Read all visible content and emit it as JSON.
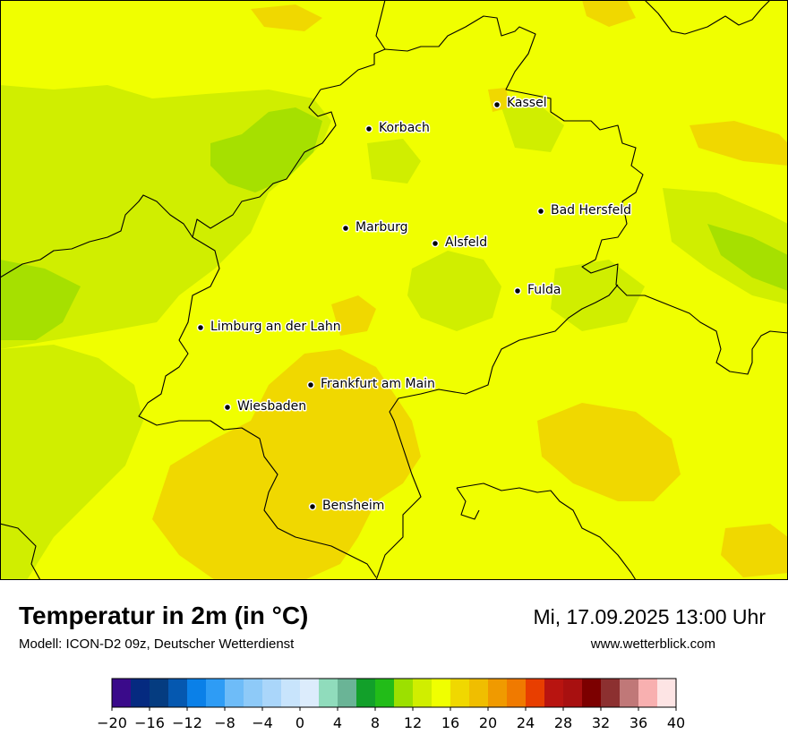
{
  "map": {
    "cities": [
      {
        "name": "Kassel"
      },
      {
        "name": "Korbach"
      },
      {
        "name": "Bad Hersfeld"
      },
      {
        "name": "Marburg"
      },
      {
        "name": "Alsfeld"
      },
      {
        "name": "Fulda"
      },
      {
        "name": "Limburg an der Lahn"
      },
      {
        "name": "Frankfurt am Main"
      },
      {
        "name": "Wiesbaden"
      },
      {
        "name": "Bensheim"
      }
    ],
    "colors": {
      "base_yellow": "#f0ff00",
      "light_green": "#d0ee00",
      "mid_green": "#a6e000",
      "gold": "#f0d800",
      "border": "#000000"
    }
  },
  "header": {
    "title": "Temperatur in 2m (in °C)",
    "subtitle": "Modell: ICON-D2 09z, Deutscher Wetterdienst",
    "datetime": "Mi, 17.09.2025 13:00 Uhr",
    "website": "www.wetterblick.com"
  },
  "legend": {
    "min": -20,
    "max": 40,
    "step": 2,
    "tick_labels": [
      "−20",
      "−16",
      "−12",
      "−8",
      "−4",
      "0",
      "4",
      "8",
      "12",
      "16",
      "20",
      "24",
      "28",
      "32",
      "36",
      "40"
    ],
    "colors": [
      "#3a0a8a",
      "#052a80",
      "#053c80",
      "#0558b0",
      "#0a80e8",
      "#2e9cf5",
      "#6ebcf8",
      "#8ecaf8",
      "#aad6fa",
      "#c8e4fc",
      "#dcecfc",
      "#90dcbc",
      "#6ab496",
      "#12a02a",
      "#22bc18",
      "#9ce000",
      "#d0ee00",
      "#f0ff00",
      "#f0d800",
      "#f0be00",
      "#f09a00",
      "#f07a00",
      "#e83e00",
      "#b81410",
      "#a81010",
      "#7c0000",
      "#8c3030",
      "#c07878",
      "#f8b0b0",
      "#fde4e4"
    ]
  }
}
